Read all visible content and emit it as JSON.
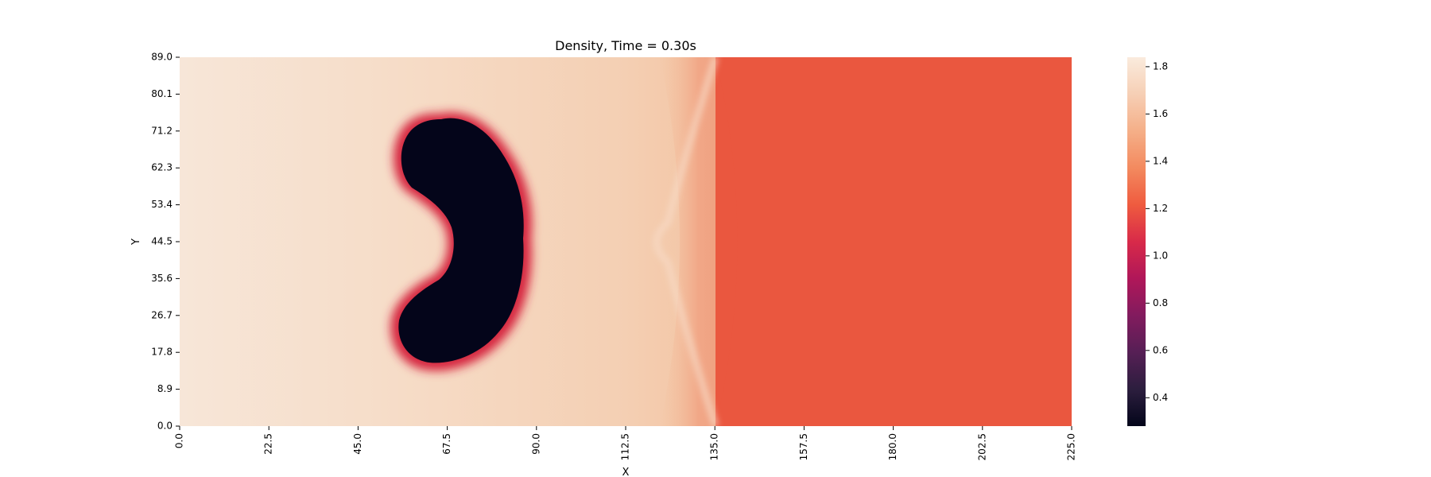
{
  "chart_data": {
    "type": "heatmap",
    "title": "Density, Time = 0.30s",
    "xlabel": "X",
    "ylabel": "Y",
    "x_ticks": [
      "0.0",
      "22.5",
      "45.0",
      "67.5",
      "90.0",
      "112.5",
      "135.0",
      "157.5",
      "180.0",
      "202.5",
      "225.0"
    ],
    "y_ticks": [
      "0.0",
      "8.9",
      "17.8",
      "26.7",
      "35.6",
      "44.5",
      "53.4",
      "62.3",
      "71.2",
      "80.1",
      "89.0"
    ],
    "xlim": [
      0,
      225
    ],
    "ylim": [
      0,
      89
    ],
    "colorbar": {
      "ticks": [
        "0.4",
        "0.6",
        "0.8",
        "1.0",
        "1.2",
        "1.4",
        "1.6",
        "1.8"
      ],
      "range": [
        0.28,
        1.84
      ]
    },
    "colormap": "rocket",
    "regions": [
      {
        "name": "upstream_high_density",
        "x_range": [
          0,
          80
        ],
        "approx_value": 1.78
      },
      {
        "name": "low_density_bubble",
        "approx_center": [
          80,
          44.5
        ],
        "approx_value": 0.3
      },
      {
        "name": "shocked_region",
        "x_range": [
          95,
          138
        ],
        "approx_value": 1.7
      },
      {
        "name": "shock_front",
        "approx_x_at_center": 143,
        "approx_x_at_walls": 135
      },
      {
        "name": "ambient_downstream",
        "x_range": [
          143,
          225
        ],
        "approx_value": 1.34
      }
    ]
  }
}
